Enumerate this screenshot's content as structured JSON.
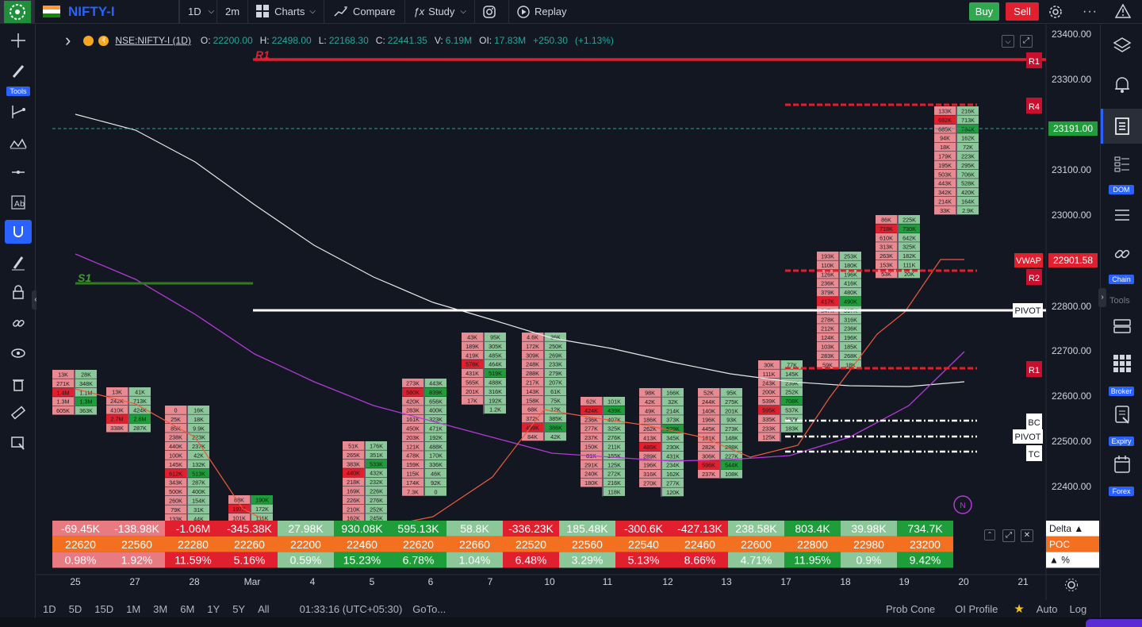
{
  "topbar": {
    "symbol": "NIFTY-I",
    "interval": "1D",
    "minutes": "2m",
    "charts": "Charts",
    "compare": "Compare",
    "study": "Study",
    "replay": "Replay",
    "buy": "Buy",
    "sell": "Sell"
  },
  "left_toolbar": {
    "tools_label": "Tools"
  },
  "right_toolbar": {
    "dom": "DOM",
    "chain": "Chain",
    "tools": "Tools",
    "broker": "Broker",
    "expiry": "Expiry",
    "forex": "Forex"
  },
  "legend": {
    "ticker": "NSE:NIFTY-I (1D)",
    "o_label": "O:",
    "o": "22200.00",
    "h_label": "H:",
    "h": "22498.00",
    "l_label": "L:",
    "l": "22168.30",
    "c_label": "C:",
    "c": "22441.35",
    "v_label": "V:",
    "v": "6.19M",
    "oi_label": "OI:",
    "oi": "17.83M",
    "chg": "+250.30",
    "chg_pct": "(+1.13%)"
  },
  "price_axis": {
    "ticks": [
      "23400.00",
      "23300.00",
      "23100.00",
      "23000.00",
      "22800.00",
      "22700.00",
      "22600.00",
      "22500.00",
      "22400.00"
    ],
    "current_price": "23191.00",
    "vwap_label": "VWAP",
    "vwap_price": "22901.58"
  },
  "levels": {
    "r1_top": "R1",
    "r4": "R4",
    "r2": "R2",
    "pivot": "PIVOT",
    "r1_low": "R1",
    "bc": "BC",
    "pivot2": "PIVOT",
    "tc": "TC",
    "s1": "S1",
    "r1_chart": "R1"
  },
  "dates": [
    "25",
    "27",
    "28",
    "Mar",
    "4",
    "5",
    "6",
    "7",
    "10",
    "11",
    "12",
    "13",
    "17",
    "18",
    "19",
    "20",
    "21"
  ],
  "stats": {
    "delta": [
      "-69.45K",
      "-138.98K",
      "-1.06M",
      "-345.38K",
      "27.98K",
      "930.08K",
      "595.13K",
      "58.8K",
      "-336.23K",
      "185.48K",
      "-300.6K",
      "-427.13K",
      "238.58K",
      "803.4K",
      "39.98K",
      "734.7K"
    ],
    "poc": [
      "22620",
      "22560",
      "22280",
      "22260",
      "22200",
      "22460",
      "22620",
      "22660",
      "22520",
      "22560",
      "22540",
      "22460",
      "22600",
      "22800",
      "22980",
      "23200"
    ],
    "pct": [
      "0.98%",
      "1.92%",
      "11.59%",
      "5.16%",
      "0.59%",
      "15.23%",
      "6.78%",
      "1.04%",
      "6.48%",
      "3.29%",
      "5.13%",
      "8.66%",
      "4.71%",
      "11.95%",
      "0.9%",
      "9.42%"
    ],
    "labels": {
      "delta": "Delta ▲",
      "poc": "POC",
      "pct": "▲ %"
    }
  },
  "bottombar": {
    "ranges": [
      "1D",
      "5D",
      "15D",
      "1M",
      "3M",
      "6M",
      "1Y",
      "5Y",
      "All"
    ],
    "clock": "01:33:16 (UTC+05:30)",
    "goto": "GoTo...",
    "prob_cone": "Prob Cone",
    "oi_profile": "OI Profile",
    "auto": "Auto",
    "log": "Log"
  },
  "footprint": [
    {
      "bid": [
        "13K",
        "271K",
        "1.4M",
        "1.3M",
        "605K"
      ],
      "ask": [
        "28K",
        "348K",
        "1.1M",
        "1.3M",
        "363K"
      ]
    },
    {
      "bid": [
        "13K",
        "242K",
        "410K",
        "2.7M",
        "338K"
      ],
      "ask": [
        "41K",
        "713K",
        "424K",
        "2.6M",
        "287K"
      ]
    },
    {
      "bid": [
        "0",
        "25K",
        "85K",
        "238K",
        "440K",
        "100K",
        "145K",
        "612K",
        "343K",
        "500K",
        "260K",
        "79K",
        "133K"
      ],
      "ask": [
        "16K",
        "18K",
        "9.9K",
        "223K",
        "237K",
        "42K",
        "132K",
        "513K",
        "287K",
        "400K",
        "154K",
        "31K",
        "44K"
      ]
    },
    {
      "bid": [
        "88K",
        "197K",
        "101K"
      ],
      "ask": [
        "190K",
        "172K",
        "111K"
      ]
    },
    {
      "bid": [],
      "ask": []
    },
    {
      "bid": [
        "51K",
        "265K",
        "383K",
        "440K",
        "218K",
        "169K",
        "226K",
        "210K",
        "162K"
      ],
      "ask": [
        "176K",
        "351K",
        "533K",
        "432K",
        "232K",
        "226K",
        "276K",
        "252K",
        "245K"
      ]
    },
    {
      "bid": [
        "273K",
        "580K",
        "420K",
        "283K",
        "161K",
        "450K",
        "203K",
        "121K",
        "478K",
        "159K",
        "115K",
        "174K",
        "7.3K"
      ],
      "ask": [
        "443K",
        "839K",
        "656K",
        "400K",
        "323K",
        "471K",
        "192K",
        "488K",
        "170K",
        "336K",
        "46K",
        "92K",
        "0"
      ]
    },
    {
      "bid": [
        "43K",
        "189K",
        "419K",
        "578K",
        "431K",
        "565K",
        "201K",
        "17K"
      ],
      "ask": [
        "95K",
        "305K",
        "485K",
        "464K",
        "519K",
        "488K",
        "316K",
        "192K",
        "1.2K"
      ]
    },
    {
      "bid": [
        "4.6K",
        "172K",
        "309K",
        "248K",
        "288K",
        "217K",
        "143K",
        "158K",
        "68K",
        "372K",
        "499K",
        "84K"
      ],
      "ask": [
        "36K",
        "250K",
        "269K",
        "233K",
        "279K",
        "207K",
        "61K",
        "75K",
        "12K",
        "385K",
        "386K",
        "42K"
      ]
    },
    {
      "bid": [
        "62K",
        "424K",
        "236K",
        "277K",
        "237K",
        "150K",
        "81K",
        "291K",
        "240K",
        "180K"
      ],
      "ask": [
        "101K",
        "439K",
        "407K",
        "325K",
        "276K",
        "211K",
        "155K",
        "125K",
        "272K",
        "216K",
        "118K"
      ]
    },
    {
      "bid": [
        "98K",
        "42K",
        "49K",
        "186K",
        "262K",
        "413K",
        "485K",
        "289K",
        "196K",
        "316K",
        "270K"
      ],
      "ask": [
        "166K",
        "32K",
        "214K",
        "373K",
        "529K",
        "345K",
        "230K",
        "431K",
        "234K",
        "162K",
        "277K",
        "120K"
      ]
    },
    {
      "bid": [
        "52K",
        "244K",
        "140K",
        "196K",
        "445K",
        "181K",
        "282K",
        "306K",
        "596K",
        "237K"
      ],
      "ask": [
        "95K",
        "275K",
        "201K",
        "93K",
        "273K",
        "148K",
        "288K",
        "227K",
        "544K",
        "108K"
      ]
    },
    {
      "bid": [
        "30K",
        "111K",
        "243K",
        "200K",
        "539K",
        "595K",
        "335K",
        "233K",
        "125K"
      ],
      "ask": [
        "77K",
        "145K",
        "239K",
        "252K",
        "708K",
        "537K",
        "337K",
        "183K"
      ]
    },
    {
      "bid": [
        "193K",
        "110K",
        "126K",
        "236K",
        "379K",
        "417K",
        "347K",
        "278K",
        "212K",
        "124K",
        "103K",
        "283K",
        "59K"
      ],
      "ask": [
        "253K",
        "180K",
        "196K",
        "416K",
        "480K",
        "490K",
        "397K",
        "316K",
        "236K",
        "196K",
        "185K",
        "268K",
        "18K"
      ]
    },
    {
      "bid": [
        "86K",
        "718K",
        "610K",
        "313K",
        "263K",
        "153K",
        "53K"
      ],
      "ask": [
        "225K",
        "730K",
        "642K",
        "325K",
        "182K",
        "111K",
        "20K"
      ]
    },
    {
      "bid": [
        "133K",
        "692K",
        "685K",
        "94K",
        "18K",
        "179K",
        "195K",
        "503K",
        "443K",
        "342K",
        "214K",
        "33K"
      ],
      "ask": [
        "216K",
        "713K",
        "764K",
        "162K",
        "72K",
        "223K",
        "295K",
        "706K",
        "528K",
        "420K",
        "164K",
        "2.9K"
      ]
    }
  ]
}
